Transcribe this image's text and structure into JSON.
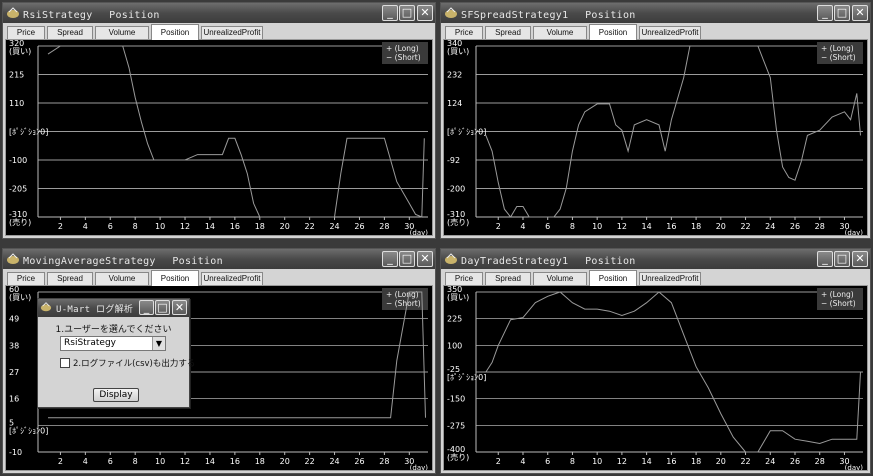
{
  "tabs": [
    "Price",
    "Spread",
    "Volume",
    "Position",
    "UnrealizedProfit"
  ],
  "controls": {
    "minimize": "_",
    "maximize": "□",
    "close": "✕"
  },
  "legend": {
    "long": "+ (Long)",
    "short": "− (Short)"
  },
  "x_unit": "(day)",
  "x_ticks": [
    "2",
    "4",
    "6",
    "8",
    "10",
    "12",
    "14",
    "16",
    "18",
    "20",
    "22",
    "24",
    "26",
    "28",
    "30"
  ],
  "windows": [
    {
      "title": "RsiStrategy　 Position",
      "chart_data": {
        "type": "line",
        "title": "Position",
        "xlabel": "(day)",
        "y_ticks": [
          "320\n(買い)",
          "215",
          "110",
          "[ﾎﾟｼﾞｼｮﾝ0]",
          "-100",
          "-205",
          "-310\n(売り)"
        ],
        "ylim": [
          -310,
          320
        ],
        "legend": [
          "+ (Long)",
          "− (Short)"
        ],
        "series": [
          {
            "x": [
              1,
              2,
              3,
              4,
              5,
              6,
              7,
              7.5,
              8,
              8.5,
              9,
              9.5,
              10,
              11,
              12,
              13,
              14,
              15,
              15.5,
              16,
              16.5,
              17,
              17.5,
              18,
              19,
              20,
              21,
              22,
              23,
              24,
              24.5,
              25,
              26,
              27,
              28,
              29,
              30,
              30.5,
              31,
              31.2
            ],
            "y": [
              290,
              320,
              320,
              320,
              320,
              320,
              320,
              240,
              130,
              40,
              -40,
              -100,
              -100,
              -100,
              -100,
              -80,
              -80,
              -80,
              -20,
              -20,
              -80,
              -150,
              -260,
              -310,
              -310,
              -310,
              -310,
              -310,
              -310,
              -310,
              -150,
              -20,
              -20,
              -20,
              -20,
              -180,
              -260,
              -300,
              -310,
              -20
            ]
          }
        ]
      }
    },
    {
      "title": "SFSpreadStrategy1　 Position",
      "chart_data": {
        "type": "line",
        "title": "Position",
        "xlabel": "(day)",
        "y_ticks": [
          "340\n(買い)",
          "232",
          "124",
          "[ﾎﾟｼﾞｼｮﾝ0]",
          "-92",
          "-200",
          "-310\n(売り)"
        ],
        "ylim": [
          -310,
          340
        ],
        "legend": [
          "+ (Long)",
          "− (Short)"
        ],
        "series": [
          {
            "x": [
              1,
              1.5,
              2,
              2.5,
              3,
              3.5,
              4,
              4.5,
              5,
              5.5,
              6,
              6.5,
              7,
              7.5,
              8,
              8.5,
              9,
              10,
              11,
              11.5,
              12,
              12.5,
              13,
              14,
              15,
              15.5,
              16,
              17,
              17.5,
              18,
              19,
              20,
              21,
              22,
              23,
              24,
              24.5,
              25,
              25.5,
              26,
              26.5,
              27,
              28,
              29,
              30,
              30.5,
              31,
              31.3
            ],
            "y": [
              0,
              -60,
              -180,
              -280,
              -310,
              -270,
              -270,
              -310,
              -310,
              -310,
              -310,
              -310,
              -280,
              -200,
              -60,
              40,
              90,
              120,
              120,
              40,
              20,
              -60,
              40,
              60,
              40,
              -60,
              60,
              220,
              340,
              340,
              340,
              340,
              340,
              340,
              340,
              220,
              20,
              -120,
              -160,
              -170,
              -100,
              0,
              20,
              70,
              90,
              60,
              160,
              0
            ]
          }
        ]
      }
    },
    {
      "title": "MovingAverageStrategy　 Position",
      "chart_data": {
        "type": "line",
        "title": "Position",
        "xlabel": "(day)",
        "y_ticks": [
          "60\n(買い)",
          "49",
          "38",
          "27",
          "16",
          "5\n[ﾎﾟｼﾞｼｮﾝ0]",
          "-10"
        ],
        "ylim": [
          -10,
          60
        ],
        "legend": [
          "+ (Long)",
          "− (Short)"
        ],
        "series": [
          {
            "x": [
              1,
              3,
              5,
              7,
              9,
              11,
              13,
              15,
              17,
              19,
              21,
              23,
              25,
              27,
              28.5,
              29,
              30,
              31,
              31.3
            ],
            "y": [
              5,
              5,
              5,
              5,
              5,
              5,
              5,
              5,
              5,
              5,
              5,
              5,
              5,
              5,
              5,
              30,
              60,
              60,
              5
            ]
          }
        ]
      }
    },
    {
      "title": "DayTradeStrategy1　 Position",
      "chart_data": {
        "type": "line",
        "title": "Position",
        "xlabel": "(day)",
        "y_ticks": [
          "350\n(買い)",
          "225",
          "100",
          "-25\n[ﾎﾟｼﾞｼｮﾝ0]",
          "-150",
          "-275",
          "-400\n(売り)"
        ],
        "ylim": [
          -400,
          350
        ],
        "legend": [
          "+ (Long)",
          "− (Short)"
        ],
        "series": [
          {
            "x": [
              1,
              1.5,
              2,
              3,
              4,
              5,
              6,
              7,
              8,
              9,
              10,
              11,
              12,
              13,
              14,
              15,
              16,
              17,
              18,
              19,
              20,
              21,
              22,
              23,
              24,
              25,
              26,
              27,
              28,
              29,
              30,
              31,
              31.3
            ],
            "y": [
              -25,
              20,
              100,
              220,
              230,
              300,
              330,
              350,
              300,
              270,
              270,
              260,
              240,
              260,
              300,
              350,
              300,
              150,
              0,
              -100,
              -220,
              -330,
              -400,
              -400,
              -300,
              -300,
              -340,
              -350,
              -360,
              -340,
              -340,
              -340,
              -25
            ]
          }
        ]
      }
    }
  ],
  "dialog": {
    "title": "U-Mart ログ解析",
    "label": "1.ユーザーを選んでください",
    "selected_user": "RsiStrategy",
    "checkbox_label": "2.ログファイル(csv)も出力する",
    "button": "Display"
  }
}
